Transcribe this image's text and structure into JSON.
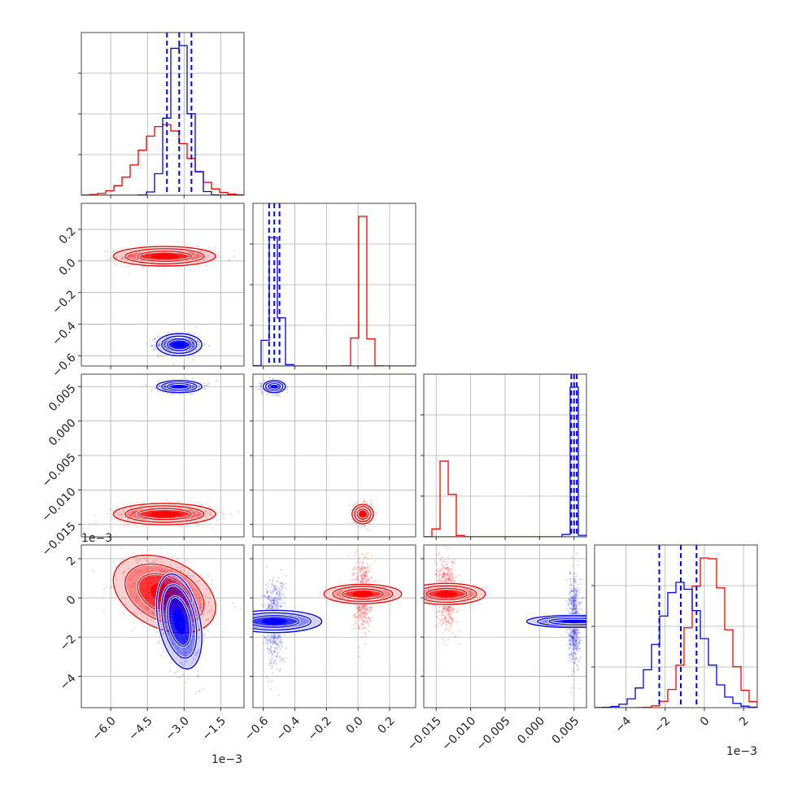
{
  "chart_data": {
    "type": "corner",
    "colors": {
      "series_a": "#ff0000",
      "series_b": "#0000ff",
      "grid": "#b0b0b0",
      "frame": "#333333"
    },
    "grid": true,
    "parameters": [
      {
        "range": [
          -0.0072,
          -0.00055
        ],
        "ticks": [
          -0.006,
          -0.0045,
          -0.003,
          -0.0015
        ],
        "tick_labels": [
          "−6.0",
          "−4.5",
          "−3.0",
          "−1.5"
        ],
        "offset_label": "1e−3"
      },
      {
        "range": [
          -0.665,
          0.365
        ],
        "ticks": [
          -0.6,
          -0.4,
          -0.2,
          0.0,
          0.2
        ],
        "tick_labels": [
          "−0.6",
          "−0.4",
          "−0.2",
          "0.0",
          "0.2"
        ],
        "offset_label": ""
      },
      {
        "range": [
          -0.0168,
          0.0068
        ],
        "ticks": [
          -0.015,
          -0.01,
          -0.005,
          0.0,
          0.005
        ],
        "tick_labels": [
          "−0.015",
          "−0.010",
          "−0.005",
          "0.000",
          "0.005"
        ],
        "offset_label": ""
      },
      {
        "range": [
          -0.0056,
          0.0027
        ],
        "ticks": [
          -0.004,
          -0.002,
          0.0,
          0.002
        ],
        "tick_labels": [
          "−4",
          "−2",
          "0",
          "2"
        ],
        "offset_label": "1e−3"
      }
    ],
    "series": [
      {
        "color": "#ff0000",
        "means": [
          -0.0038,
          0.03,
          -0.0135,
          0.0002
        ],
        "sds": [
          0.00095,
          0.028,
          0.0007,
          0.0009
        ]
      },
      {
        "color": "#0000ff",
        "means": [
          -0.0032,
          -0.53,
          0.005,
          -0.0012
        ],
        "sds": [
          0.00042,
          0.032,
          0.0004,
          0.0011
        ],
        "quantiles": [
          [
            -0.0037,
            -0.0032,
            -0.0027
          ],
          [
            -0.563,
            -0.53,
            -0.497
          ],
          [
            0.0046,
            0.005,
            0.0054
          ],
          [
            -0.0023,
            -0.0012,
            -0.0004
          ]
        ]
      }
    ],
    "correlations": {
      "1-0": 0.0,
      "2-0": 0.0,
      "2-1": 0.0,
      "3-0": -0.35,
      "3-1": 0.0,
      "3-2": 0.0
    }
  }
}
